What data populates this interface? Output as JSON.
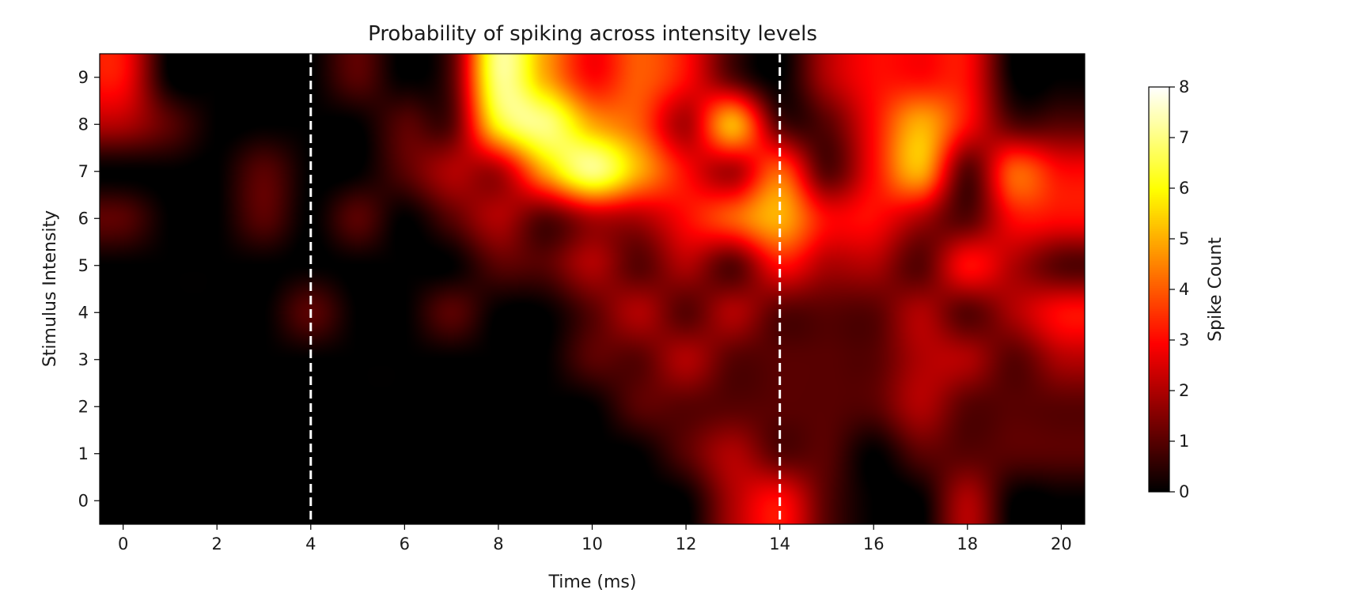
{
  "chart_data": {
    "type": "heatmap",
    "title": "Probability of spiking across intensity levels",
    "xlabel": "Time (ms)",
    "ylabel": "Stimulus Intensity",
    "colorbar_label": "Spike Count",
    "colormap": "hot",
    "interpolation": "bicubic",
    "x": [
      0,
      1,
      2,
      3,
      4,
      5,
      6,
      7,
      8,
      9,
      10,
      11,
      12,
      13,
      14,
      15,
      16,
      17,
      18,
      19,
      20
    ],
    "y": [
      0,
      1,
      2,
      3,
      4,
      5,
      6,
      7,
      8,
      9
    ],
    "xlim": [
      -0.5,
      20.5
    ],
    "ylim": [
      -0.5,
      9.5
    ],
    "clim": [
      0,
      8
    ],
    "x_ticks": [
      0,
      2,
      4,
      6,
      8,
      10,
      12,
      14,
      16,
      18,
      20
    ],
    "y_ticks": [
      0,
      1,
      2,
      3,
      4,
      5,
      6,
      7,
      8,
      9
    ],
    "colorbar_ticks": [
      0,
      1,
      2,
      3,
      4,
      5,
      6,
      7,
      8
    ],
    "vlines": [
      4,
      14
    ],
    "vline_style": {
      "color": "#ffffff",
      "dash": "dashed"
    },
    "grid": false,
    "values": [
      [
        0,
        0,
        0,
        0,
        0,
        0,
        0,
        0,
        0,
        0,
        0,
        0,
        0,
        2,
        3,
        1,
        0,
        0,
        2,
        0,
        0
      ],
      [
        0,
        0,
        0,
        0,
        0,
        0,
        0,
        0,
        0,
        0,
        0,
        0,
        1,
        2,
        1,
        1,
        0,
        1,
        1,
        1,
        1
      ],
      [
        0,
        0,
        0,
        0,
        0,
        0,
        0,
        0,
        0,
        0,
        0,
        1,
        1,
        1,
        1,
        1,
        1,
        2,
        1,
        1,
        1
      ],
      [
        0,
        0,
        0,
        0,
        0,
        0,
        0,
        0,
        0,
        0,
        1,
        1,
        2,
        1,
        1,
        1,
        1,
        2,
        2,
        1,
        2
      ],
      [
        0,
        0,
        0,
        0,
        1,
        0,
        0,
        1,
        0,
        0,
        1,
        2,
        1,
        2,
        1,
        1,
        1,
        2,
        1,
        2,
        3
      ],
      [
        0,
        0,
        0,
        0,
        0,
        0,
        0,
        0,
        1,
        1,
        2,
        1,
        2,
        1,
        3,
        2,
        2,
        1,
        3,
        2,
        1
      ],
      [
        1,
        0,
        0,
        1,
        0,
        1,
        0,
        1,
        2,
        1,
        2,
        2,
        3,
        4,
        5,
        3,
        3,
        2,
        1,
        3,
        3
      ],
      [
        0,
        0,
        0,
        1,
        0,
        0,
        1,
        2,
        2,
        5,
        7,
        5,
        3,
        2,
        4,
        1,
        3,
        5,
        1,
        4,
        3
      ],
      [
        2,
        1,
        0,
        0,
        0,
        0,
        1,
        1,
        6,
        7,
        5,
        4,
        2,
        5,
        1,
        1,
        3,
        5,
        3,
        1,
        1
      ],
      [
        3,
        0,
        0,
        0,
        0,
        1,
        0,
        1,
        7,
        5,
        3,
        4,
        3,
        1,
        0,
        2,
        3,
        3,
        3,
        0,
        0
      ]
    ]
  }
}
